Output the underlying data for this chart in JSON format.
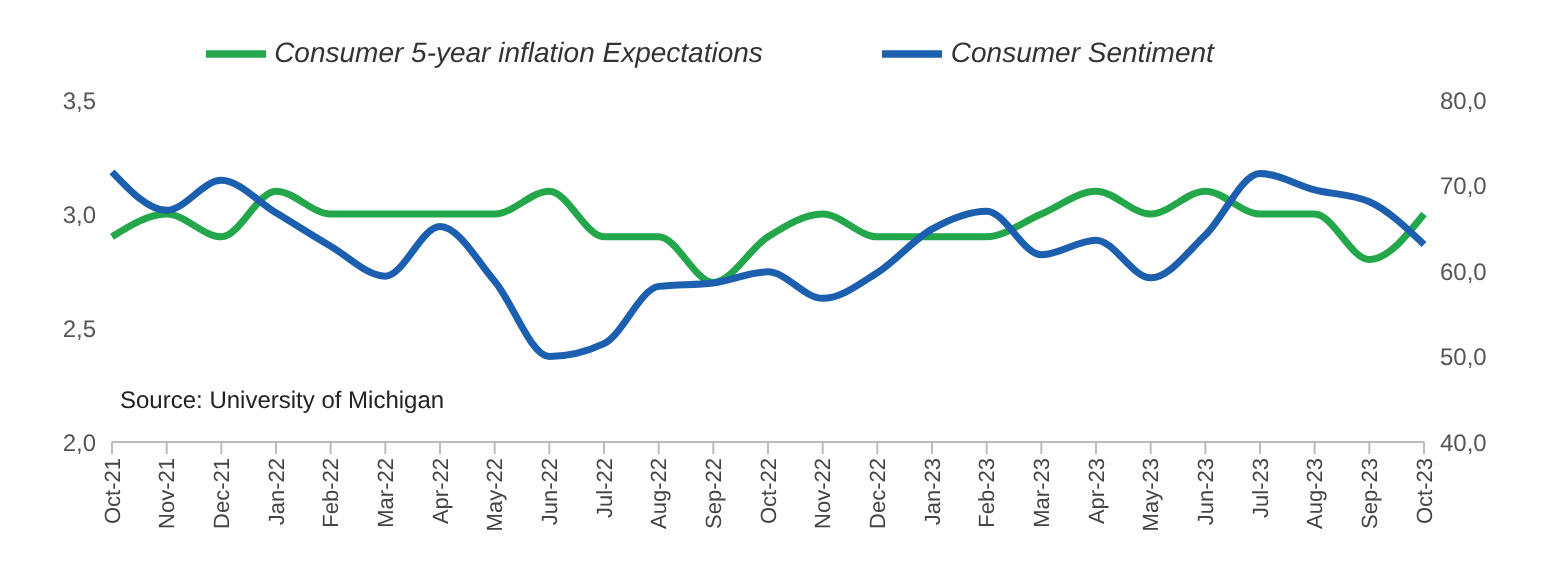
{
  "chart_data": {
    "type": "line",
    "categories": [
      "Oct-21",
      "Nov-21",
      "Dec-21",
      "Jan-22",
      "Feb-22",
      "Mar-22",
      "Apr-22",
      "May-22",
      "Jun-22",
      "Jul-22",
      "Aug-22",
      "Sep-22",
      "Oct-22",
      "Nov-22",
      "Dec-22",
      "Jan-23",
      "Feb-23",
      "Mar-23",
      "Apr-23",
      "May-23",
      "Jun-23",
      "Jul-23",
      "Aug-23",
      "Sep-23",
      "Oct-23"
    ],
    "series": [
      {
        "name": "Consumer 5-year inflation Expectations",
        "color": "#23a74a",
        "values": [
          2.9,
          3.0,
          2.9,
          3.1,
          3.0,
          3.0,
          3.0,
          3.0,
          3.1,
          2.9,
          2.9,
          2.7,
          2.9,
          3.0,
          2.9,
          2.9,
          2.9,
          3.0,
          3.1,
          3.0,
          3.1,
          3.0,
          3.0,
          2.8,
          3.0
        ]
      },
      {
        "name": "Consumer Sentiment",
        "color": "#1b5fae",
        "axis": "y2",
        "values": [
          71.6,
          67.1,
          70.6,
          66.8,
          62.9,
          59.4,
          65.2,
          58.8,
          50.0,
          51.5,
          58.2,
          58.6,
          59.9,
          56.8,
          59.8,
          64.9,
          67.0,
          61.9,
          63.6,
          59.2,
          64.2,
          71.4,
          69.5,
          68.1,
          63.1
        ]
      }
    ],
    "ylim": [
      2.0,
      3.5
    ],
    "yticks": [
      {
        "value": 2.0,
        "label": "2,0"
      },
      {
        "value": 2.5,
        "label": "2,5"
      },
      {
        "value": 3.0,
        "label": "3,0"
      },
      {
        "value": 3.5,
        "label": "3,5"
      }
    ],
    "y2lim": [
      40,
      80
    ],
    "y2ticks": [
      {
        "value": 40,
        "label": "40,0"
      },
      {
        "value": 50,
        "label": "50,0"
      },
      {
        "value": 60,
        "label": "60,0"
      },
      {
        "value": 70,
        "label": "70,0"
      },
      {
        "value": 80,
        "label": "80,0"
      }
    ],
    "annotations": [
      "Source: University of Michigan"
    ],
    "legend": "top",
    "grid": false,
    "marker": "none",
    "line_style": "solid"
  }
}
